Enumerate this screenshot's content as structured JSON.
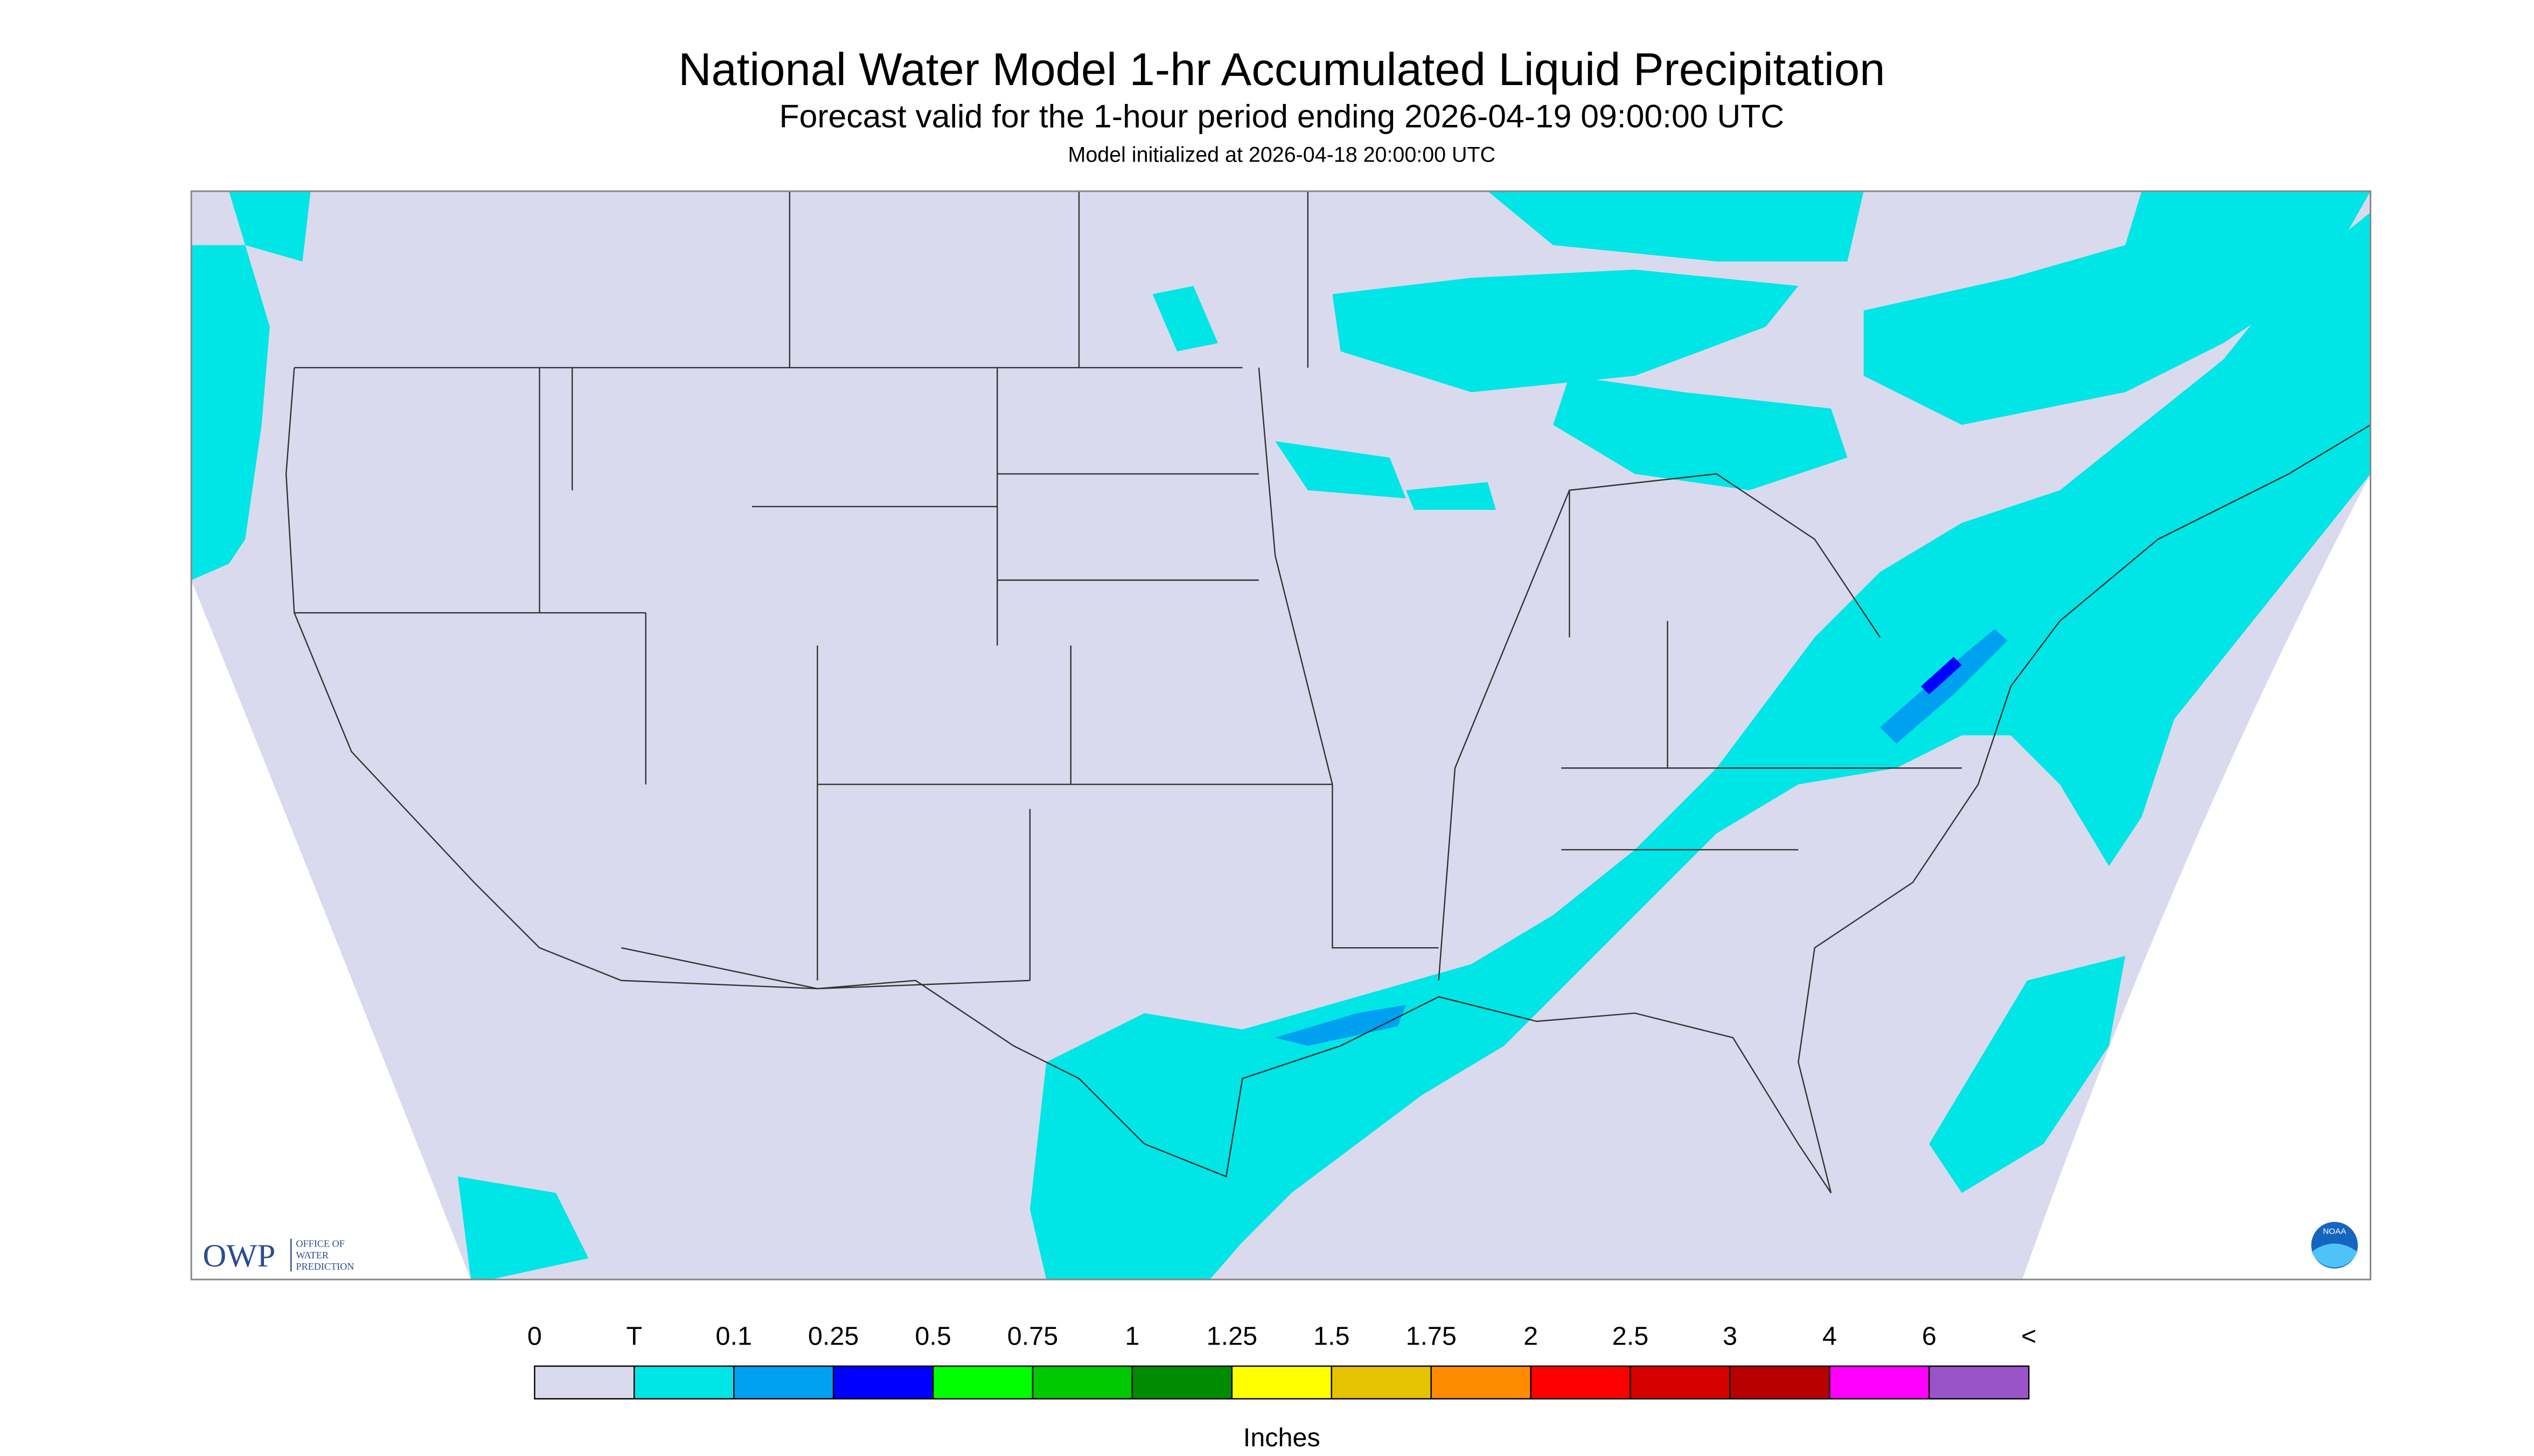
{
  "header": {
    "title": "National Water Model 1-hr Accumulated Liquid Precipitation",
    "subtitle": "Forecast valid for the 1-hour period ending 2026-04-19 09:00:00 UTC",
    "init": "Model initialized at 2026-04-18 20:00:00 UTC"
  },
  "legend": {
    "labels": [
      "0",
      "T",
      "0.1",
      "0.25",
      "0.5",
      "0.75",
      "1",
      "1.25",
      "1.5",
      "1.75",
      "2",
      "2.5",
      "3",
      "4",
      "6",
      "<"
    ],
    "colors": [
      "#dadaee",
      "#00e5e5",
      "#00a0f0",
      "#0000ff",
      "#00ff00",
      "#00c800",
      "#008c00",
      "#ffff00",
      "#e6c300",
      "#ff8c00",
      "#ff0000",
      "#d70000",
      "#b90000",
      "#ff00ff",
      "#9955c8"
    ],
    "unit": "Inches"
  },
  "logo": {
    "owp": "OWP",
    "office": [
      "OFFICE OF",
      "WATER",
      "PREDICTION"
    ],
    "noaa": "NOAA"
  }
}
